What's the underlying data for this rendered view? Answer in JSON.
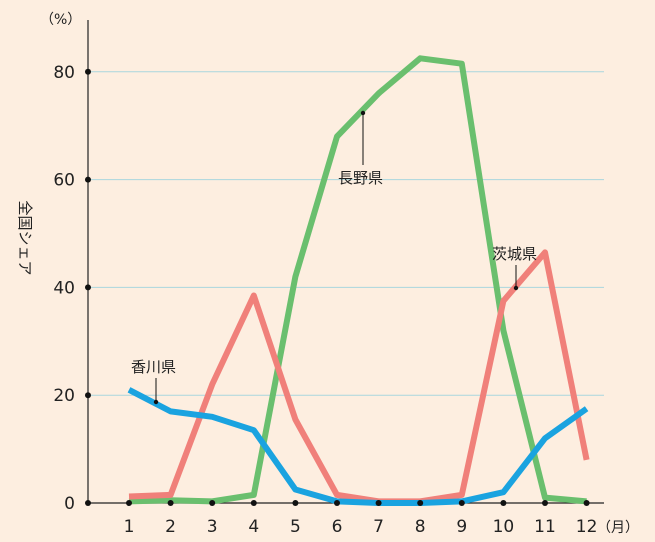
{
  "chart_data": {
    "type": "line",
    "title": "",
    "xlabel": "",
    "ylabel": "全国シェア",
    "y_unit": "（%）",
    "x_unit": "（月）",
    "ylim": [
      0,
      85
    ],
    "yticks": [
      0,
      20,
      40,
      60,
      80
    ],
    "grid": true,
    "categories": [
      "1",
      "2",
      "3",
      "4",
      "5",
      "6",
      "7",
      "8",
      "9",
      "10",
      "11",
      "12"
    ],
    "series": [
      {
        "name": "長野県",
        "color": "#6abf6e",
        "values": [
          0.3,
          0.5,
          0.3,
          1.5,
          42,
          68,
          76,
          82.5,
          81.5,
          32,
          1,
          0.3
        ]
      },
      {
        "name": "茨城県",
        "color": "#f0807a",
        "values": [
          1.2,
          1.5,
          22,
          38.5,
          15.5,
          1.5,
          0.3,
          0.3,
          1.5,
          37.5,
          46.5,
          8
        ]
      },
      {
        "name": "香川県",
        "color": "#1aa3e0",
        "values": [
          21,
          17,
          16,
          13.5,
          2.5,
          0.3,
          0,
          0,
          0.3,
          2,
          12,
          17.5
        ]
      }
    ]
  }
}
